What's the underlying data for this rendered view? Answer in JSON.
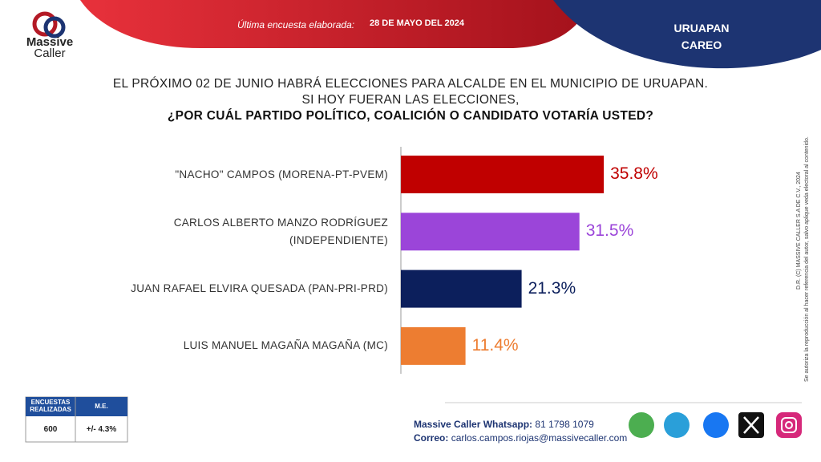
{
  "logo": {
    "line1": "Massive",
    "line2": "Caller"
  },
  "header": {
    "label": "Última encuesta elaborada:",
    "date": "28 DE MAYO DEL 2024",
    "city": "URUAPAN",
    "kind": "CAREO"
  },
  "chart_data": {
    "type": "hbar",
    "title_lines": [
      "EL PRÓXIMO 02 DE JUNIO HABRÁ ELECCIONES PARA ALCALDE EN EL MUNICIPIO DE URUAPAN.",
      "SI HOY FUERAN LAS ELECCIONES,",
      "¿POR CUÁL PARTIDO POLÍTICO, COALICIÓN O CANDIDATO VOTARÍA USTED?"
    ],
    "categories": [
      "\"NACHO\" CAMPOS (MORENA-PT-PVEM)",
      "CARLOS ALBERTO MANZO RODRÍGUEZ\n(INDEPENDIENTE)",
      "JUAN RAFAEL ELVIRA QUESADA (PAN-PRI-PRD)",
      "LUIS MANUEL MAGAÑA MAGAÑA (MC)"
    ],
    "values": [
      35.8,
      31.5,
      21.3,
      11.4
    ],
    "value_labels": [
      "35.8%",
      "31.5%",
      "21.3%",
      "11.4%"
    ],
    "colors": [
      "#c00000",
      "#9b45d9",
      "#0c1f5c",
      "#ed7d31"
    ]
  },
  "sample": {
    "h1": "ENCUESTAS REALIZADAS",
    "h2": "M.E.",
    "n": "600",
    "me": "+/- 4.3%"
  },
  "contact": {
    "wa_label": "Massive Caller Whatsapp:",
    "wa": "81 1798 1079",
    "mail_label": "Correo:",
    "mail": "carlos.campos.riojas@massivecaller.com"
  },
  "legal": [
    "D.R. (C) MASSIVE CALLER S.A DE C.V., 2024",
    "Se autoriza la reproducción al hacer referencia del autor, salvo aplique veda electoral al contenido."
  ]
}
